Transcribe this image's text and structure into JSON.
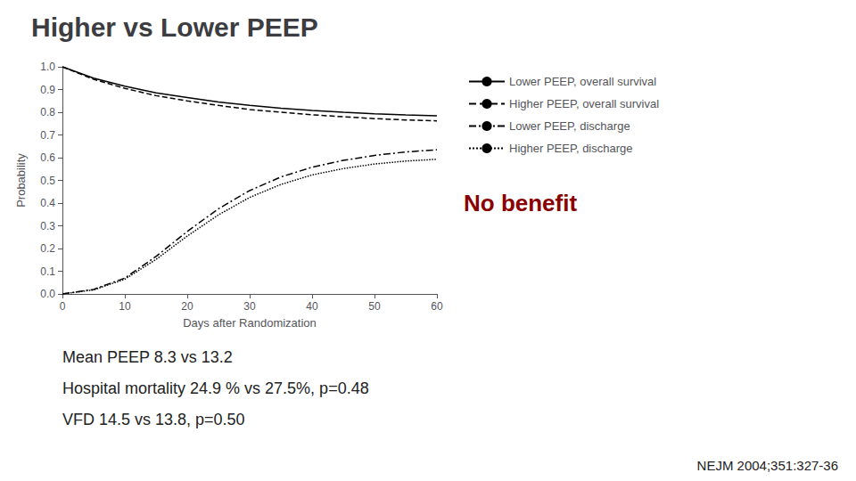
{
  "chart_data": {
    "type": "line",
    "title": "Higher vs Lower PEEP",
    "x_label": "Days after Randomization",
    "y_label": "Probability",
    "x": [
      0,
      5,
      10,
      15,
      20,
      25,
      30,
      35,
      40,
      45,
      50,
      55,
      60
    ],
    "series": [
      {
        "name": "Lower PEEP, overall survival",
        "color": "black",
        "line_style": "solid",
        "values": [
          1.0,
          0.95,
          0.915,
          0.885,
          0.865,
          0.845,
          0.83,
          0.818,
          0.808,
          0.8,
          0.793,
          0.788,
          0.784
        ]
      },
      {
        "name": "Higher PEEP, overall survival",
        "color": "black",
        "line_style": "dashed",
        "values": [
          1.0,
          0.945,
          0.905,
          0.873,
          0.85,
          0.83,
          0.812,
          0.8,
          0.789,
          0.78,
          0.772,
          0.766,
          0.762
        ]
      },
      {
        "name": "Lower PEEP, discharge",
        "color": "black",
        "line_style": "dashdot",
        "values": [
          0.0,
          0.02,
          0.07,
          0.165,
          0.275,
          0.375,
          0.455,
          0.515,
          0.558,
          0.588,
          0.61,
          0.625,
          0.635
        ]
      },
      {
        "name": "Higher PEEP, discharge",
        "color": "black",
        "line_style": "dotted",
        "values": [
          0.0,
          0.018,
          0.065,
          0.152,
          0.255,
          0.348,
          0.425,
          0.482,
          0.524,
          0.552,
          0.572,
          0.585,
          0.593
        ]
      }
    ],
    "xlim": [
      0,
      60
    ],
    "xticks": [
      0,
      10,
      20,
      30,
      40,
      50,
      60
    ],
    "ylim": [
      0.0,
      1.0
    ],
    "yticks": [
      {
        "value": 0.0,
        "label": "0.0"
      },
      0.1,
      0.2,
      0.3,
      0.4,
      0.5,
      0.6,
      0.7,
      0.8,
      0.9,
      {
        "value": 1.0,
        "label": "1.0"
      }
    ],
    "grid": false,
    "legend": "right",
    "annotations": [
      "No benefit",
      "Mean PEEP 8.3 vs 13.2",
      "Hospital mortality 24.9 % vs 27.5%, p=0.48",
      "VFD 14.5 vs 13.8, p=0.50",
      "NEJM 2004;351:327-36"
    ]
  }
}
